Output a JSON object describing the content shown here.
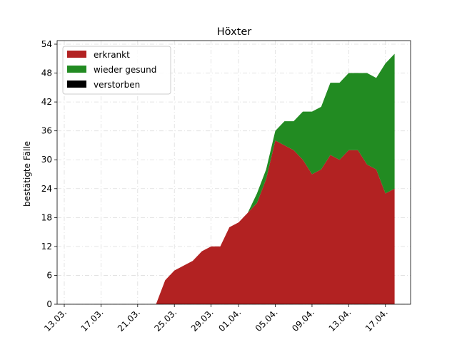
{
  "chart_data": {
    "type": "stacked_area",
    "title": "Höxter",
    "ylabel": "bestätigte Fälle",
    "categories": [
      "13.03.",
      null,
      null,
      null,
      "17.03.",
      null,
      null,
      null,
      "21.03.",
      null,
      null,
      null,
      "25.03.",
      null,
      null,
      null,
      "29.03.",
      null,
      null,
      "01.04.",
      null,
      null,
      null,
      "05.04.",
      null,
      null,
      null,
      "09.04.",
      null,
      null,
      null,
      "13.04.",
      null,
      null,
      null,
      "17.04.",
      null
    ],
    "series": [
      {
        "name": "erkrankt",
        "color": "#b22222",
        "values": [
          0,
          0,
          0,
          0,
          0,
          0,
          0,
          0,
          0,
          0,
          0,
          5,
          7,
          8,
          9,
          11,
          12,
          12,
          16,
          17,
          19,
          21,
          26,
          34,
          33,
          32,
          30,
          27,
          28,
          31,
          30,
          32,
          32,
          29,
          28,
          23,
          24
        ]
      },
      {
        "name": "wieder gesund",
        "color": "#228b22",
        "values": [
          0,
          0,
          0,
          0,
          0,
          0,
          0,
          0,
          0,
          0,
          0,
          0,
          0,
          0,
          0,
          0,
          0,
          0,
          0,
          0,
          0,
          2,
          2,
          2,
          5,
          6,
          10,
          13,
          13,
          15,
          16,
          16,
          16,
          19,
          19,
          27,
          28
        ]
      },
      {
        "name": "verstorben",
        "color": "#000000",
        "values": [
          0,
          0,
          0,
          0,
          0,
          0,
          0,
          0,
          0,
          0,
          0,
          0,
          0,
          0,
          0,
          0,
          0,
          0,
          0,
          0,
          0,
          0,
          0,
          0,
          0,
          0,
          0,
          0,
          0,
          0,
          0,
          0,
          0,
          0,
          0,
          0,
          0
        ]
      }
    ],
    "ylim": [
      0,
      54
    ],
    "yticks": [
      0,
      6,
      12,
      18,
      24,
      30,
      36,
      42,
      48,
      54
    ],
    "grid": true,
    "legend": "upper left"
  }
}
